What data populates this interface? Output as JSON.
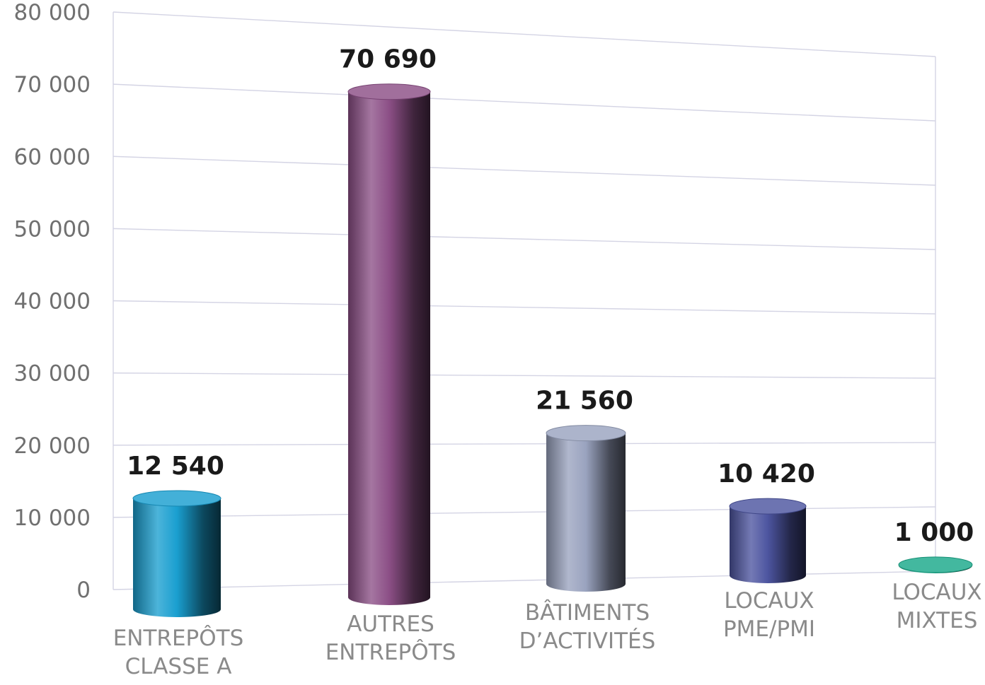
{
  "chart_data": {
    "type": "bar",
    "categories": [
      [
        "ENTREPÔTS",
        "CLASSE A"
      ],
      [
        "AUTRES",
        "ENTREPÔTS"
      ],
      [
        "BÂTIMENTS",
        "D’ACTIVITÉS"
      ],
      [
        "LOCAUX",
        "PME/PMI"
      ],
      [
        "LOCAUX",
        "MIXTES"
      ]
    ],
    "values": [
      12540,
      70690,
      21560,
      10420,
      1000
    ],
    "value_labels": [
      "12 540",
      "70 690",
      "21 560",
      "10 420",
      "1 000"
    ],
    "ylim": [
      0,
      80000
    ],
    "y_ticks": [
      0,
      10000,
      20000,
      30000,
      40000,
      50000,
      60000,
      70000,
      80000
    ],
    "y_tick_labels": [
      "0",
      "10 000",
      "20 000",
      "30 000",
      "40 000",
      "50 000",
      "60 000",
      "70 000",
      "80 000"
    ],
    "title": "",
    "xlabel": "",
    "ylabel": "",
    "grid": true,
    "legend": "none",
    "style": "3d-cylinders",
    "colors": [
      "#1a9fd0",
      "#8c4f86",
      "#9aa3bf",
      "#4d55a0",
      "#1aa88a"
    ]
  }
}
